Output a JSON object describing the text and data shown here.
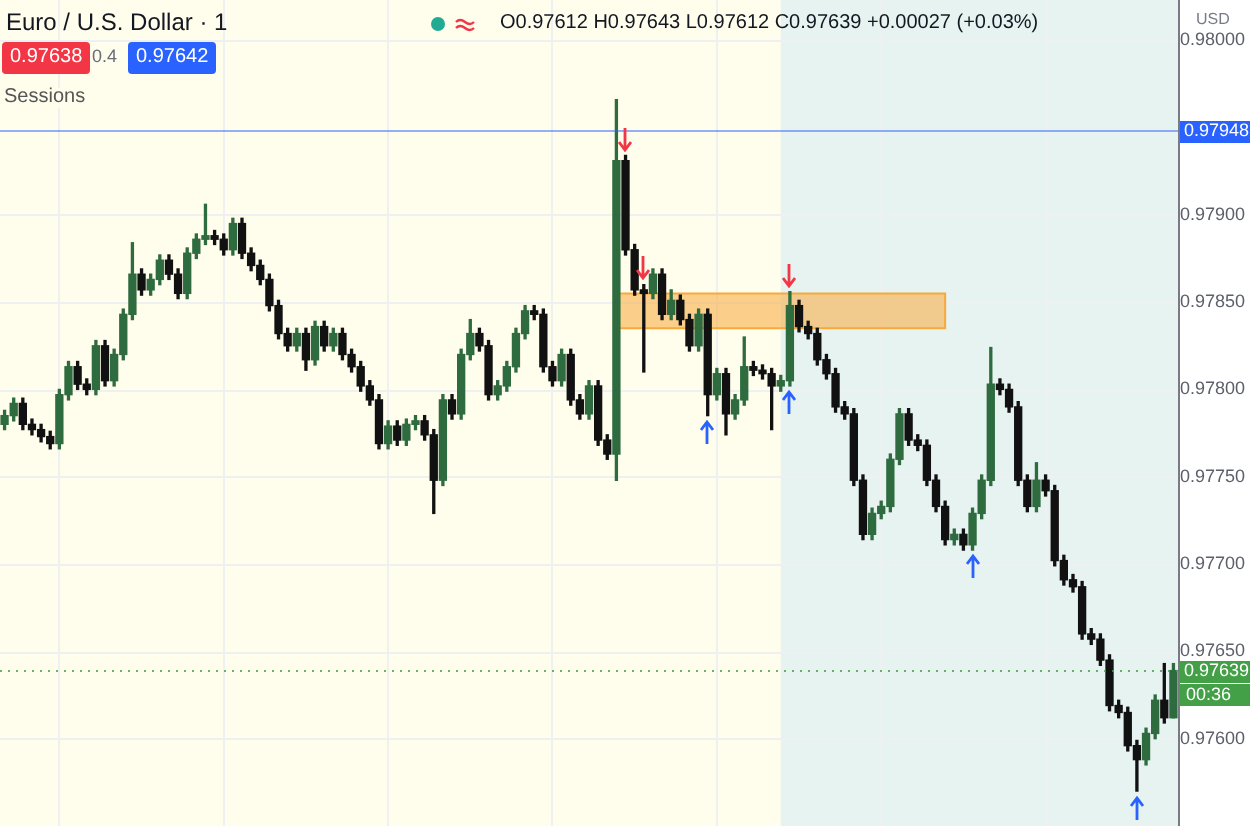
{
  "chart_data": {
    "type": "candlestick",
    "title": "Euro / U.S. Dollar · 1",
    "categories": [
      null,
      null,
      null,
      null,
      null,
      null,
      null,
      null,
      null,
      null,
      null,
      null,
      null,
      null,
      null,
      null,
      null,
      null,
      null,
      null,
      null,
      null,
      null,
      null,
      null,
      null,
      null,
      null,
      null,
      null,
      null,
      null,
      null,
      null,
      null,
      null,
      null,
      null,
      null,
      null,
      null,
      null,
      null,
      null,
      null,
      null,
      null,
      null,
      null,
      null,
      null,
      null,
      null,
      null,
      null,
      null,
      null,
      null,
      null,
      null,
      null,
      null,
      null,
      null,
      null,
      null,
      null,
      null,
      null,
      null,
      null,
      null,
      null,
      null,
      null,
      null,
      null,
      null,
      null,
      null,
      null,
      null,
      null,
      null,
      null,
      null,
      null,
      null,
      null,
      null,
      null,
      null,
      null,
      null,
      null,
      null,
      null,
      null,
      null,
      null,
      null,
      null,
      null,
      null,
      null,
      null,
      null,
      null,
      null,
      null,
      null,
      null,
      null,
      null,
      null,
      null,
      null,
      null,
      null,
      null,
      null,
      null,
      null,
      null,
      null,
      null,
      null,
      null,
      null
    ],
    "ohlc": [
      [
        0.9778,
        0.97788,
        0.97777,
        0.97785
      ],
      [
        0.97785,
        0.97795,
        0.97782,
        0.97792
      ],
      [
        0.97792,
        0.97795,
        0.97777,
        0.9778
      ],
      [
        0.9778,
        0.97783,
        0.97774,
        0.97777
      ],
      [
        0.97777,
        0.9778,
        0.9777,
        0.97773
      ],
      [
        0.97773,
        0.97776,
        0.97766,
        0.97769
      ],
      [
        0.97769,
        0.978,
        0.97766,
        0.97797
      ],
      [
        0.97797,
        0.97816,
        0.97794,
        0.97813
      ],
      [
        0.97813,
        0.97816,
        0.978,
        0.97803
      ],
      [
        0.97803,
        0.97806,
        0.97797,
        0.978
      ],
      [
        0.978,
        0.97828,
        0.97797,
        0.97825
      ],
      [
        0.97825,
        0.97828,
        0.97802,
        0.97805
      ],
      [
        0.97805,
        0.97823,
        0.97802,
        0.9782
      ],
      [
        0.9782,
        0.97846,
        0.97817,
        0.97843
      ],
      [
        0.97843,
        0.97884,
        0.9784,
        0.97866
      ],
      [
        0.97866,
        0.97869,
        0.97854,
        0.97857
      ],
      [
        0.97857,
        0.97866,
        0.97854,
        0.97863
      ],
      [
        0.97863,
        0.97877,
        0.9786,
        0.97874
      ],
      [
        0.97874,
        0.97877,
        0.97863,
        0.97866
      ],
      [
        0.97866,
        0.97869,
        0.97852,
        0.97855
      ],
      [
        0.97855,
        0.97881,
        0.97852,
        0.97878
      ],
      [
        0.97878,
        0.97889,
        0.97875,
        0.97886
      ],
      [
        0.97886,
        0.97906,
        0.97883,
        0.97888
      ],
      [
        0.97888,
        0.97891,
        0.97883,
        0.97886
      ],
      [
        0.97886,
        0.97889,
        0.97877,
        0.9788
      ],
      [
        0.9788,
        0.97898,
        0.97877,
        0.97895
      ],
      [
        0.97895,
        0.97898,
        0.97875,
        0.97878
      ],
      [
        0.97878,
        0.97881,
        0.97868,
        0.97871
      ],
      [
        0.97871,
        0.97874,
        0.9786,
        0.97863
      ],
      [
        0.97863,
        0.97866,
        0.97845,
        0.97848
      ],
      [
        0.97848,
        0.97851,
        0.97829,
        0.97832
      ],
      [
        0.97832,
        0.97835,
        0.97822,
        0.97825
      ],
      [
        0.97825,
        0.97835,
        0.97822,
        0.97832
      ],
      [
        0.97832,
        0.97835,
        0.97811,
        0.97817
      ],
      [
        0.97817,
        0.97839,
        0.97814,
        0.97836
      ],
      [
        0.97836,
        0.97839,
        0.97822,
        0.97825
      ],
      [
        0.97825,
        0.97835,
        0.97822,
        0.97832
      ],
      [
        0.97832,
        0.97835,
        0.97817,
        0.9782
      ],
      [
        0.9782,
        0.97823,
        0.9781,
        0.97813
      ],
      [
        0.97813,
        0.97816,
        0.97799,
        0.97802
      ],
      [
        0.97802,
        0.97805,
        0.97791,
        0.97794
      ],
      [
        0.97794,
        0.97797,
        0.97766,
        0.97769
      ],
      [
        0.97769,
        0.97782,
        0.97766,
        0.97779
      ],
      [
        0.97779,
        0.97782,
        0.97768,
        0.97771
      ],
      [
        0.97771,
        0.97783,
        0.97768,
        0.9778
      ],
      [
        0.9778,
        0.97785,
        0.97777,
        0.97782
      ],
      [
        0.97782,
        0.97785,
        0.97771,
        0.97774
      ],
      [
        0.97774,
        0.97777,
        0.97729,
        0.97748
      ],
      [
        0.97748,
        0.97797,
        0.97745,
        0.97794
      ],
      [
        0.97794,
        0.97797,
        0.97783,
        0.97786
      ],
      [
        0.97786,
        0.97823,
        0.97783,
        0.9782
      ],
      [
        0.9782,
        0.9784,
        0.97817,
        0.97832
      ],
      [
        0.97832,
        0.97835,
        0.97822,
        0.97825
      ],
      [
        0.97825,
        0.97828,
        0.97794,
        0.97797
      ],
      [
        0.97797,
        0.97805,
        0.97794,
        0.97802
      ],
      [
        0.97802,
        0.97816,
        0.97799,
        0.97813
      ],
      [
        0.97813,
        0.97835,
        0.9781,
        0.97832
      ],
      [
        0.97832,
        0.97848,
        0.97829,
        0.97845
      ],
      [
        0.97845,
        0.97848,
        0.9784,
        0.97843
      ],
      [
        0.97843,
        0.97846,
        0.9781,
        0.97813
      ],
      [
        0.97813,
        0.97816,
        0.97802,
        0.97805
      ],
      [
        0.97805,
        0.97823,
        0.97802,
        0.9782
      ],
      [
        0.9782,
        0.97823,
        0.97791,
        0.97794
      ],
      [
        0.97794,
        0.97797,
        0.97783,
        0.97786
      ],
      [
        0.97786,
        0.97805,
        0.97783,
        0.97802
      ],
      [
        0.97802,
        0.97805,
        0.97768,
        0.97771
      ],
      [
        0.97771,
        0.97774,
        0.9776,
        0.97763
      ],
      [
        0.97763,
        0.97966,
        0.97748,
        0.97931
      ],
      [
        0.97931,
        0.97934,
        0.97877,
        0.9788
      ],
      [
        0.9788,
        0.97883,
        0.97854,
        0.97857
      ],
      [
        0.97857,
        0.9786,
        0.9781,
        0.97855
      ],
      [
        0.97855,
        0.97869,
        0.97852,
        0.97866
      ],
      [
        0.97866,
        0.97869,
        0.9784,
        0.97843
      ],
      [
        0.97843,
        0.97857,
        0.9784,
        0.97851
      ],
      [
        0.97851,
        0.97854,
        0.97837,
        0.9784
      ],
      [
        0.9784,
        0.97843,
        0.97822,
        0.97825
      ],
      [
        0.97825,
        0.97846,
        0.97822,
        0.97843
      ],
      [
        0.97843,
        0.97846,
        0.97785,
        0.97797
      ],
      [
        0.97797,
        0.97812,
        0.97794,
        0.97809
      ],
      [
        0.97809,
        0.97812,
        0.97774,
        0.97786
      ],
      [
        0.97786,
        0.97797,
        0.97783,
        0.97794
      ],
      [
        0.97794,
        0.9783,
        0.97791,
        0.97813
      ],
      [
        0.97813,
        0.97816,
        0.97808,
        0.97811
      ],
      [
        0.97811,
        0.97814,
        0.97806,
        0.97809
      ],
      [
        0.97809,
        0.97812,
        0.97777,
        0.97802
      ],
      [
        0.97802,
        0.97808,
        0.97799,
        0.97805
      ],
      [
        0.97805,
        0.97856,
        0.97802,
        0.97848
      ],
      [
        0.97848,
        0.97851,
        0.97833,
        0.97836
      ],
      [
        0.97836,
        0.97839,
        0.97829,
        0.97832
      ],
      [
        0.97832,
        0.97835,
        0.97814,
        0.97817
      ],
      [
        0.97817,
        0.9782,
        0.97806,
        0.97809
      ],
      [
        0.97809,
        0.97812,
        0.97787,
        0.9779
      ],
      [
        0.9779,
        0.97793,
        0.97783,
        0.97786
      ],
      [
        0.97786,
        0.97789,
        0.97745,
        0.97748
      ],
      [
        0.97748,
        0.97751,
        0.97714,
        0.97717
      ],
      [
        0.97717,
        0.97732,
        0.97714,
        0.97729
      ],
      [
        0.97729,
        0.97736,
        0.97726,
        0.97733
      ],
      [
        0.97733,
        0.97763,
        0.9773,
        0.9776
      ],
      [
        0.9776,
        0.97789,
        0.97757,
        0.97786
      ],
      [
        0.97786,
        0.97789,
        0.97768,
        0.97771
      ],
      [
        0.97771,
        0.97774,
        0.97765,
        0.97768
      ],
      [
        0.97768,
        0.97771,
        0.97745,
        0.97748
      ],
      [
        0.97748,
        0.97751,
        0.9773,
        0.97733
      ],
      [
        0.97733,
        0.97736,
        0.97711,
        0.97714
      ],
      [
        0.97714,
        0.9772,
        0.97711,
        0.97717
      ],
      [
        0.97717,
        0.9772,
        0.97708,
        0.97711
      ],
      [
        0.97711,
        0.97732,
        0.97708,
        0.97729
      ],
      [
        0.97729,
        0.97751,
        0.97726,
        0.97748
      ],
      [
        0.97748,
        0.97824,
        0.97745,
        0.97803
      ],
      [
        0.97803,
        0.97806,
        0.97797,
        0.978
      ],
      [
        0.978,
        0.97803,
        0.97787,
        0.9779
      ],
      [
        0.9779,
        0.97793,
        0.97745,
        0.97748
      ],
      [
        0.97748,
        0.97751,
        0.9773,
        0.97733
      ],
      [
        0.97733,
        0.97758,
        0.9773,
        0.97748
      ],
      [
        0.97748,
        0.97751,
        0.97739,
        0.97742
      ],
      [
        0.97742,
        0.97745,
        0.97699,
        0.97702
      ],
      [
        0.97702,
        0.97705,
        0.97688,
        0.97691
      ],
      [
        0.97691,
        0.97694,
        0.97684,
        0.97687
      ],
      [
        0.97687,
        0.9769,
        0.97657,
        0.9766
      ],
      [
        0.9766,
        0.97663,
        0.97654,
        0.97657
      ],
      [
        0.97657,
        0.9766,
        0.97642,
        0.97645
      ],
      [
        0.97645,
        0.97648,
        0.97616,
        0.97619
      ],
      [
        0.97619,
        0.97622,
        0.97612,
        0.97615
      ],
      [
        0.97615,
        0.97618,
        0.97593,
        0.97596
      ],
      [
        0.97596,
        0.97599,
        0.9757,
        0.97588
      ],
      [
        0.97588,
        0.97606,
        0.97585,
        0.97603
      ],
      [
        0.97603,
        0.97625,
        0.976,
        0.97622
      ],
      [
        0.97622,
        0.97643,
        0.97609,
        0.97612
      ],
      [
        0.97612,
        0.97643,
        0.97612,
        0.97639
      ]
    ],
    "colors": [
      "#2e6b3f",
      "#2e6b3f",
      "#111111",
      "#111111",
      "#111111",
      "#111111",
      "#2e6b3f",
      "#2e6b3f",
      "#111111",
      "#111111",
      "#2e6b3f",
      "#111111",
      "#2e6b3f",
      "#2e6b3f",
      "#2e6b3f",
      "#111111",
      "#2e6b3f",
      "#2e6b3f",
      "#111111",
      "#111111",
      "#2e6b3f",
      "#2e6b3f",
      "#2e6b3f",
      "#111111",
      "#111111",
      "#2e6b3f",
      "#111111",
      "#111111",
      "#111111",
      "#111111",
      "#111111",
      "#111111",
      "#2e6b3f",
      "#111111",
      "#2e6b3f",
      "#111111",
      "#2e6b3f",
      "#111111",
      "#111111",
      "#111111",
      "#111111",
      "#111111",
      "#2e6b3f",
      "#111111",
      "#2e6b3f",
      "#2e6b3f",
      "#111111",
      "#111111",
      "#2e6b3f",
      "#111111",
      "#2e6b3f",
      "#2e6b3f",
      "#111111",
      "#111111",
      "#2e6b3f",
      "#2e6b3f",
      "#2e6b3f",
      "#2e6b3f",
      "#111111",
      "#111111",
      "#111111",
      "#2e6b3f",
      "#111111",
      "#111111",
      "#2e6b3f",
      "#111111",
      "#111111",
      "#2e6b3f",
      "#111111",
      "#111111",
      "#111111",
      "#2e6b3f",
      "#111111",
      "#2e6b3f",
      "#111111",
      "#111111",
      "#2e6b3f",
      "#111111",
      "#2e6b3f",
      "#111111",
      "#2e6b3f",
      "#2e6b3f",
      "#111111",
      "#111111",
      "#111111",
      "#2e6b3f",
      "#2e6b3f",
      "#111111",
      "#111111",
      "#111111",
      "#111111",
      "#111111",
      "#111111",
      "#111111",
      "#111111",
      "#2e6b3f",
      "#2e6b3f",
      "#2e6b3f",
      "#2e6b3f",
      "#111111",
      "#111111",
      "#111111",
      "#111111",
      "#111111",
      "#2e6b3f",
      "#111111",
      "#2e6b3f",
      "#2e6b3f",
      "#2e6b3f",
      "#111111",
      "#111111",
      "#111111",
      "#111111",
      "#2e6b3f",
      "#111111",
      "#111111",
      "#111111",
      "#111111",
      "#111111",
      "#111111",
      "#111111",
      "#111111",
      "#111111",
      "#111111",
      "#111111",
      "#2e6b3f",
      "#2e6b3f",
      "#111111",
      "#2e6b3f"
    ],
    "ylim": [
      0.9755,
      0.98023
    ],
    "yticks": [
      {
        "value": 0.976,
        "label": "0.97600"
      },
      {
        "value": 0.9765,
        "label": "0.97650"
      },
      {
        "value": 0.977,
        "label": "0.97700"
      },
      {
        "value": 0.9775,
        "label": "0.97750"
      },
      {
        "value": 0.978,
        "label": "0.97800"
      },
      {
        "value": 0.9785,
        "label": "0.97850"
      },
      {
        "value": 0.979,
        "label": "0.97900"
      },
      {
        "value": 0.98,
        "label": "0.98000"
      }
    ],
    "tick_labels": "y",
    "grid": true,
    "legend": false,
    "ref_lines": [
      {
        "axis": "y",
        "value": 0.97948,
        "label": "0.97948",
        "color": "#2962ff"
      },
      {
        "axis": "y",
        "value": 0.97639,
        "label": "0.97639",
        "color": "#43a047",
        "line_style": "dotted"
      }
    ],
    "bands": [
      {
        "axis": "y",
        "from": 0.97835,
        "to": 0.97855,
        "color": "#f7a93b"
      }
    ],
    "annotations": [
      "O0.97612 H0.97643 L0.97612 C0.97639 +0.00027 (+0.03%)",
      "0.97638",
      "0.4",
      "0.97642",
      "Sessions",
      "USD",
      "00:36"
    ]
  }
}
